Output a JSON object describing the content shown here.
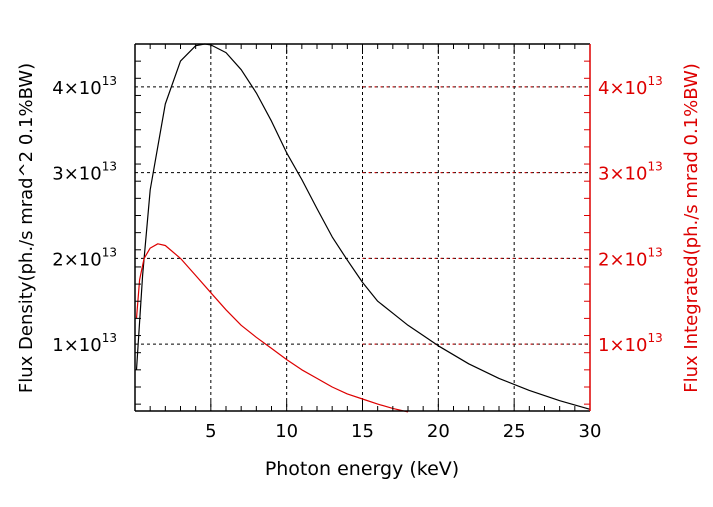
{
  "chart_data": {
    "type": "line",
    "xlabel": "Photon energy (keV)",
    "ylabel": "Flux Density(ph./s mrad^2 0.1%BW)",
    "y2label": "Flux Integrated(ph./s mrad 0.1%BW)",
    "xlim": [
      0,
      30
    ],
    "ylim": [
      2200000000000.0,
      45000000000000.0
    ],
    "xticks": [
      5,
      10,
      15,
      20,
      25,
      30
    ],
    "xtick_labels": [
      "5",
      "10",
      "15",
      "20",
      "25",
      "30"
    ],
    "yticks": [
      10000000000000.0,
      20000000000000.0,
      30000000000000.0,
      40000000000000.0
    ],
    "ytick_labels": [
      {
        "mant": "1×10",
        "exp": "13"
      },
      {
        "mant": "2×10",
        "exp": "13"
      },
      {
        "mant": "3×10",
        "exp": "13"
      },
      {
        "mant": "4×10",
        "exp": "13"
      }
    ],
    "grid": true,
    "colors": {
      "left": "#000000",
      "right": "#dd0000"
    },
    "series": [
      {
        "axis": "left",
        "color": "#000000",
        "x": [
          0.1,
          0.5,
          1,
          2,
          3,
          4,
          4.6,
          5,
          6,
          7,
          8,
          9,
          10,
          11,
          12,
          13,
          14,
          15,
          16,
          17,
          18,
          19,
          20,
          22,
          24,
          26,
          28,
          30
        ],
        "y": [
          7000000000000.0,
          18000000000000.0,
          28000000000000.0,
          38000000000000.0,
          43000000000000.0,
          44800000000000.0,
          45000000000000.0,
          44900000000000.0,
          44000000000000.0,
          42000000000000.0,
          39300000000000.0,
          36000000000000.0,
          32300000000000.0,
          29200000000000.0,
          25800000000000.0,
          22500000000000.0,
          19800000000000.0,
          17200000000000.0,
          15000000000000.0,
          13600000000000.0,
          12200000000000.0,
          11000000000000.0,
          9800000000000.0,
          7700000000000.0,
          6000000000000.0,
          4600000000000.0,
          3400000000000.0,
          2400000000000.0
        ]
      },
      {
        "axis": "right",
        "color": "#dd0000",
        "x": [
          0.1,
          0.3,
          0.6,
          1,
          1.5,
          2,
          3,
          4,
          5,
          6,
          7,
          8,
          9,
          10,
          11,
          12,
          13,
          14,
          15,
          16,
          17,
          18
        ],
        "y": [
          13000000000000.0,
          17500000000000.0,
          20000000000000.0,
          21200000000000.0,
          21700000000000.0,
          21500000000000.0,
          20000000000000.0,
          18000000000000.0,
          16000000000000.0,
          14000000000000.0,
          12200000000000.0,
          10800000000000.0,
          9500000000000.0,
          8200000000000.0,
          7000000000000.0,
          6000000000000.0,
          5000000000000.0,
          4200000000000.0,
          3600000000000.0,
          3000000000000.0,
          2500000000000.0,
          2100000000000.0
        ]
      }
    ]
  }
}
